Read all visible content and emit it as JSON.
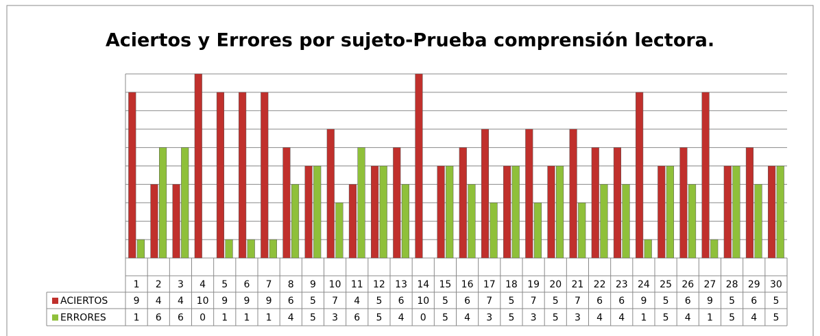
{
  "chart_data": {
    "type": "bar",
    "title": "Aciertos y Errores  por sujeto-Prueba comprensión lectora.",
    "categories": [
      "1",
      "2",
      "3",
      "4",
      "5",
      "6",
      "7",
      "8",
      "9",
      "10",
      "11",
      "12",
      "13",
      "14",
      "15",
      "16",
      "17",
      "18",
      "19",
      "20",
      "21",
      "22",
      "23",
      "24",
      "25",
      "26",
      "27",
      "28",
      "29",
      "30"
    ],
    "series": [
      {
        "name": "ACIERTOS",
        "color": "#c0302c",
        "values": [
          9,
          4,
          4,
          10,
          9,
          9,
          9,
          6,
          5,
          7,
          4,
          5,
          6,
          10,
          5,
          6,
          7,
          5,
          7,
          5,
          7,
          6,
          6,
          9,
          5,
          6,
          9,
          5,
          6,
          5
        ]
      },
      {
        "name": "ERRORES",
        "color": "#8fc03a",
        "values": [
          1,
          6,
          6,
          0,
          1,
          1,
          1,
          4,
          5,
          3,
          6,
          5,
          4,
          0,
          5,
          4,
          3,
          5,
          3,
          5,
          3,
          4,
          4,
          1,
          5,
          4,
          1,
          5,
          4,
          5
        ]
      }
    ],
    "ylim": [
      0,
      10
    ],
    "yticks": [
      0,
      1,
      2,
      3,
      4,
      5,
      6,
      7,
      8,
      9,
      10
    ],
    "grid": true
  }
}
